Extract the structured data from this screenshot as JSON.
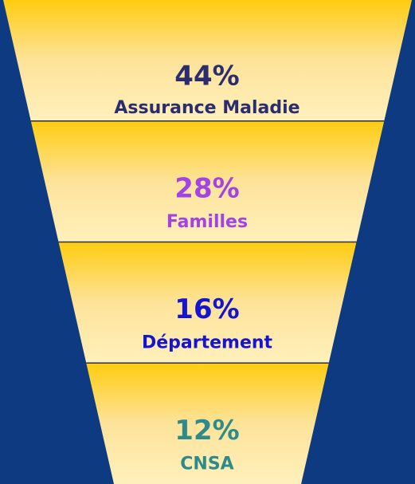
{
  "chart_data": {
    "type": "funnel",
    "categories": [
      "Assurance Maladie",
      "Familles",
      "Département",
      "CNSA"
    ],
    "values": [
      44,
      28,
      16,
      12
    ],
    "value_labels": [
      "44%",
      "28%",
      "16%",
      "12%"
    ],
    "colors": [
      "#2b2d6e",
      "#a243e6",
      "#1414d2",
      "#2e8b8b"
    ]
  }
}
